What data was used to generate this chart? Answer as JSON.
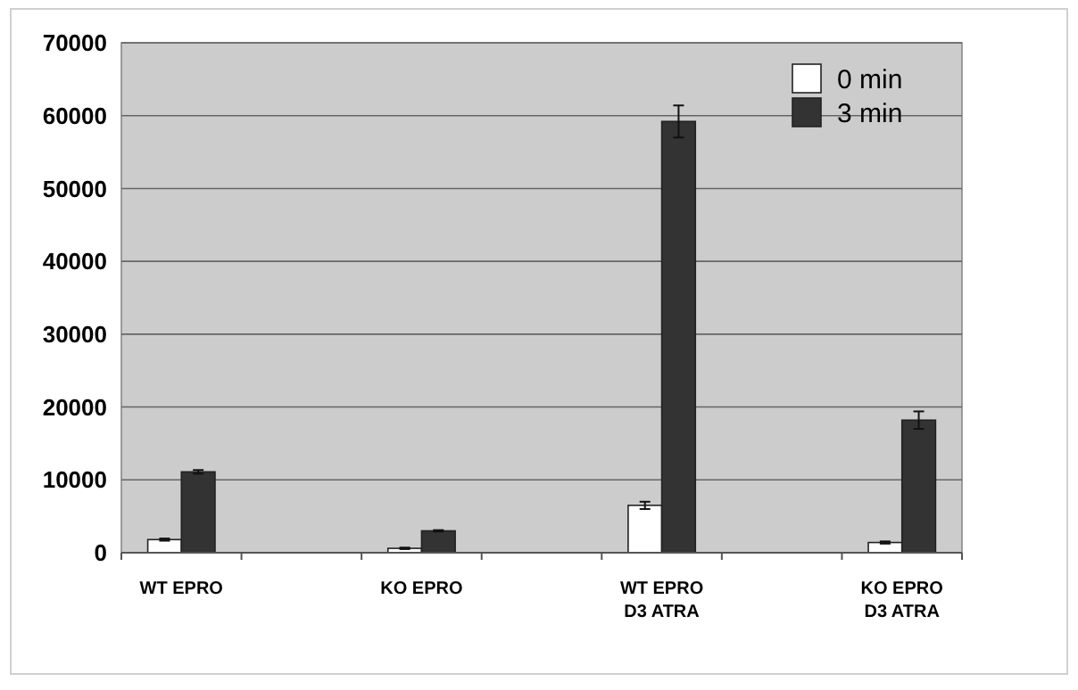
{
  "chart_data": {
    "type": "bar",
    "categories": [
      "WT EPRO",
      null,
      "KO EPRO",
      null,
      "WT EPRO\nD3 ATRA",
      null,
      "KO EPRO\nD3 ATRA"
    ],
    "series": [
      {
        "name": "0 min",
        "color": "#ffffff",
        "values": [
          1800,
          null,
          600,
          null,
          6500,
          null,
          1400
        ],
        "errors": [
          150,
          null,
          100,
          null,
          500,
          null,
          150
        ]
      },
      {
        "name": "3 min",
        "color": "#333333",
        "values": [
          11100,
          null,
          3000,
          null,
          59200,
          null,
          18200
        ],
        "errors": [
          250,
          null,
          100,
          null,
          2200,
          null,
          1200
        ]
      }
    ],
    "ylim": [
      0,
      70000
    ],
    "yticks": [
      0,
      10000,
      20000,
      30000,
      40000,
      50000,
      60000,
      70000
    ],
    "grid": "y",
    "legend": "top right"
  }
}
